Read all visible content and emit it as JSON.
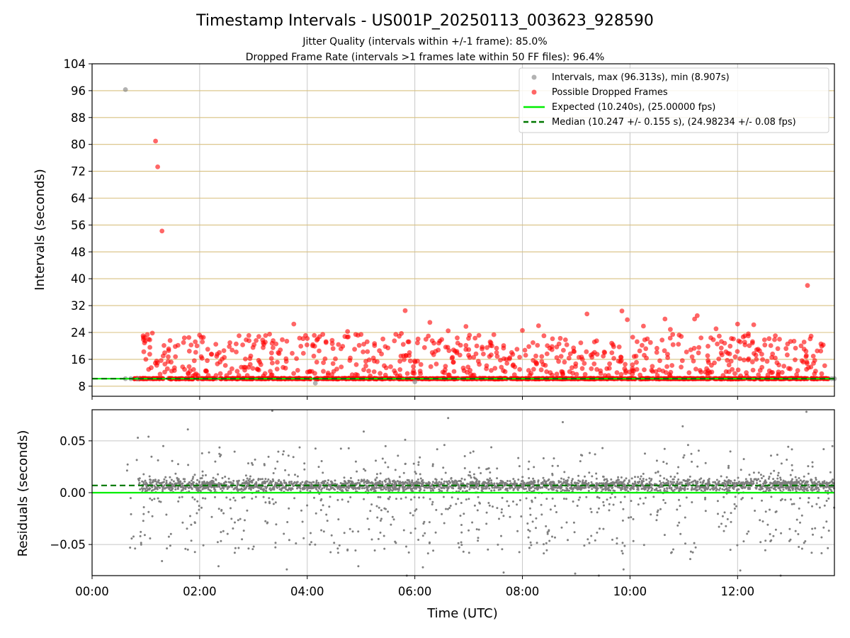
{
  "chart_data": [
    {
      "type": "scatter",
      "title": "Timestamp Intervals - US001P_20250113_003623_928590",
      "subtitle_lines": [
        "Jitter Quality (intervals within +/-1 frame): 85.0%",
        "Dropped Frame Rate (intervals >1 frames late within 50 FF files): 96.4%"
      ],
      "xlabel": "",
      "ylabel": "Intervals (seconds)",
      "x_unit": "hours since 00:00 UTC",
      "xlim": [
        0,
        13.8
      ],
      "ylim": [
        5,
        104
      ],
      "yticks": [
        8,
        16,
        24,
        32,
        40,
        48,
        56,
        64,
        72,
        80,
        88,
        96,
        104
      ],
      "ygrid_color": "#d8c080",
      "series": [
        {
          "name": "Intervals, max (96.313s), min (8.907s)",
          "color": "#7f7f7f",
          "points": [
            [
              0.62,
              96.313
            ],
            [
              0.62,
              10.24
            ],
            [
              0.72,
              10.24
            ],
            [
              0.85,
              10.24
            ],
            [
              4.15,
              8.907
            ],
            [
              6.0,
              9.3
            ],
            [
              13.75,
              10.24
            ],
            [
              13.8,
              10.24
            ]
          ]
        },
        {
          "name": "Possible Dropped Frames",
          "color": "#ff0000",
          "baseline_band": {
            "x_start": 0.78,
            "x_end": 13.7,
            "y": 10.25
          },
          "points": [
            [
              1.18,
              81.0
            ],
            [
              1.22,
              73.3
            ],
            [
              1.3,
              54.2
            ],
            [
              13.3,
              38.0
            ],
            [
              5.82,
              30.5
            ],
            [
              9.2,
              29.5
            ],
            [
              9.85,
              30.4
            ],
            [
              9.95,
              27.8
            ],
            [
              10.65,
              28.0
            ],
            [
              11.25,
              29.0
            ],
            [
              3.75,
              26.5
            ],
            [
              6.28,
              27.0
            ],
            [
              6.95,
              25.8
            ],
            [
              11.2,
              28.0
            ],
            [
              12.0,
              26.5
            ],
            [
              12.3,
              26.3
            ],
            [
              8.3,
              26.0
            ],
            [
              10.25,
              25.9
            ],
            [
              11.6,
              25.1
            ],
            [
              4.75,
              24.3
            ],
            [
              1.12,
              23.8
            ],
            [
              0.98,
              22.5
            ],
            [
              0.95,
              23.0
            ],
            [
              1.05,
              22.0
            ],
            [
              1.45,
              21.6
            ],
            [
              1.7,
              21.0
            ],
            [
              1.8,
              22.5
            ],
            [
              1.95,
              20.0
            ],
            [
              2.05,
              21.2
            ],
            [
              2.15,
              19.0
            ],
            [
              2.3,
              20.5
            ],
            [
              2.45,
              18.6
            ],
            [
              2.55,
              19.8
            ],
            [
              2.68,
              18.2
            ],
            [
              2.8,
              20.3
            ],
            [
              2.95,
              17.0
            ],
            [
              3.05,
              21.6
            ],
            [
              3.18,
              19.5
            ],
            [
              3.3,
              23.5
            ],
            [
              3.42,
              20.6
            ],
            [
              3.5,
              18.8
            ],
            [
              3.62,
              21.4
            ],
            [
              3.72,
              17.8
            ],
            [
              3.88,
              19.9
            ],
            [
              4.0,
              22.2
            ],
            [
              4.1,
              20.0
            ],
            [
              4.22,
              18.5
            ],
            [
              4.35,
              21.0
            ],
            [
              4.48,
              19.2
            ],
            [
              4.58,
              20.4
            ],
            [
              4.7,
              22.8
            ],
            [
              4.88,
              19.0
            ],
            [
              5.0,
              23.4
            ],
            [
              5.12,
              18.3
            ],
            [
              5.25,
              20.7
            ],
            [
              5.38,
              17.6
            ],
            [
              5.5,
              19.4
            ],
            [
              5.62,
              21.5
            ],
            [
              5.75,
              23.7
            ],
            [
              5.9,
              18.0
            ],
            [
              6.05,
              20.9
            ],
            [
              6.18,
              19.5
            ],
            [
              6.35,
              17.4
            ],
            [
              6.5,
              21.9
            ],
            [
              6.62,
              24.5
            ],
            [
              6.72,
              18.8
            ],
            [
              6.85,
              20.2
            ],
            [
              7.0,
              17.2
            ],
            [
              7.12,
              22.3
            ],
            [
              7.25,
              19.1
            ],
            [
              7.4,
              21.2
            ],
            [
              7.52,
              18.0
            ],
            [
              7.65,
              20.1
            ],
            [
              7.82,
              17.5
            ],
            [
              8.0,
              24.6
            ],
            [
              8.12,
              19.8
            ],
            [
              8.25,
              17.0
            ],
            [
              8.4,
              23.0
            ],
            [
              8.55,
              18.9
            ],
            [
              8.68,
              20.6
            ],
            [
              8.8,
              21.8
            ],
            [
              8.95,
              19.4
            ],
            [
              9.05,
              16.6
            ],
            [
              9.38,
              21.5
            ],
            [
              9.52,
              18.2
            ],
            [
              9.66,
              20.8
            ],
            [
              9.8,
              19.7
            ],
            [
              10.05,
              22.6
            ],
            [
              10.18,
              18.5
            ],
            [
              10.38,
              21.0
            ],
            [
              10.5,
              19.3
            ],
            [
              10.75,
              24.9
            ],
            [
              10.9,
              20.5
            ],
            [
              11.05,
              18.2
            ],
            [
              11.32,
              22.4
            ],
            [
              11.45,
              19.9
            ],
            [
              11.7,
              21.3
            ],
            [
              11.82,
              17.8
            ],
            [
              12.05,
              21.2
            ],
            [
              12.2,
              23.6
            ],
            [
              12.38,
              19.0
            ],
            [
              12.5,
              21.8
            ],
            [
              12.65,
              17.6
            ],
            [
              12.78,
              22.0
            ],
            [
              12.9,
              19.2
            ],
            [
              13.05,
              21.4
            ],
            [
              13.18,
              20.0
            ],
            [
              13.35,
              22.1
            ],
            [
              13.48,
              18.5
            ],
            [
              13.55,
              20.6
            ],
            [
              1.0,
              16.0
            ],
            [
              1.1,
              13.5
            ],
            [
              1.2,
              15.5
            ],
            [
              1.35,
              12.2
            ],
            [
              1.55,
              16.8
            ],
            [
              1.72,
              13.0
            ],
            [
              1.9,
              15.6
            ],
            [
              2.12,
              12.6
            ],
            [
              2.38,
              15.2
            ],
            [
              2.6,
              13.2
            ],
            [
              2.85,
              16.1
            ],
            [
              3.1,
              12.8
            ],
            [
              3.35,
              14.9
            ],
            [
              3.55,
              13.6
            ],
            [
              3.8,
              16.2
            ],
            [
              4.05,
              12.4
            ],
            [
              4.3,
              15.0
            ],
            [
              4.55,
              13.1
            ],
            [
              4.8,
              16.4
            ],
            [
              5.05,
              12.9
            ],
            [
              5.3,
              15.3
            ],
            [
              5.55,
              13.8
            ],
            [
              5.8,
              15.9
            ],
            [
              6.1,
              12.5
            ],
            [
              6.4,
              14.6
            ],
            [
              6.55,
              12.0
            ],
            [
              6.7,
              16.6
            ],
            [
              6.9,
              13.4
            ],
            [
              7.18,
              15.4
            ],
            [
              7.42,
              12.7
            ],
            [
              7.7,
              16.0
            ],
            [
              7.95,
              13.0
            ],
            [
              8.2,
              15.7
            ],
            [
              8.45,
              12.3
            ],
            [
              8.72,
              16.9
            ],
            [
              8.92,
              13.5
            ],
            [
              9.15,
              14.8
            ],
            [
              9.45,
              12.6
            ],
            [
              9.7,
              16.3
            ],
            [
              9.9,
              13.2
            ],
            [
              10.12,
              15.1
            ],
            [
              10.42,
              12.4
            ],
            [
              10.7,
              16.5
            ],
            [
              10.95,
              13.7
            ],
            [
              11.18,
              15.5
            ],
            [
              11.4,
              12.2
            ],
            [
              11.65,
              16.1
            ],
            [
              11.9,
              13.0
            ],
            [
              12.12,
              15.8
            ],
            [
              12.42,
              12.7
            ],
            [
              12.7,
              16.4
            ],
            [
              12.95,
              13.3
            ],
            [
              13.22,
              15.2
            ],
            [
              13.45,
              12.5
            ],
            [
              13.62,
              14.1
            ]
          ]
        }
      ],
      "reference_lines": [
        {
          "name": "Expected (10.240s), (25.00000 fps)",
          "y": 10.24,
          "color": "#00ee00",
          "style": "solid"
        },
        {
          "name": "Median (10.247 +/- 0.155 s), (24.98234 +/- 0.08 fps)",
          "y": 10.247,
          "color": "#007700",
          "style": "dashed"
        }
      ],
      "grid": "vertical (gray) + horizontal (tan)",
      "legend_position": "top-right"
    },
    {
      "type": "scatter",
      "xlabel": "Time (UTC)",
      "ylabel": "Residuals (seconds)",
      "x_unit": "hours since 00:00 UTC",
      "xlim": [
        0,
        13.8
      ],
      "ylim": [
        -0.08,
        0.08
      ],
      "xticks": [
        0,
        2,
        4,
        6,
        8,
        10,
        12
      ],
      "xtick_labels": [
        "00:00",
        "02:00",
        "04:00",
        "06:00",
        "08:00",
        "10:00",
        "12:00"
      ],
      "yticks": [
        0.05,
        0.0,
        -0.05
      ],
      "ytick_labels": [
        "0.05",
        "0.00",
        "−0.05"
      ],
      "series": [
        {
          "name": "",
          "color": "#7f7f7f",
          "dense_band": {
            "x_start": 0.85,
            "x_end": 13.8,
            "y_center": 0.007,
            "y_spread": 0.009,
            "count": 2600
          },
          "scatter_cloud": {
            "x_start": 0.65,
            "x_end": 13.8,
            "y_min": -0.078,
            "y_max": 0.075,
            "count": 650
          },
          "points": [
            [
              0.85,
              0.053
            ],
            [
              1.05,
              0.054
            ],
            [
              1.78,
              0.061
            ],
            [
              2.38,
              0.035
            ],
            [
              3.35,
              0.079
            ],
            [
              5.05,
              0.059
            ],
            [
              5.82,
              0.051
            ],
            [
              6.62,
              0.072
            ],
            [
              6.55,
              0.046
            ],
            [
              8.75,
              0.068
            ],
            [
              9.35,
              0.037
            ],
            [
              10.98,
              0.064
            ],
            [
              11.08,
              0.046
            ],
            [
              13.28,
              0.078
            ],
            [
              13.6,
              0.042
            ],
            [
              1.3,
              -0.066
            ],
            [
              1.78,
              -0.055
            ],
            [
              2.35,
              -0.071
            ],
            [
              3.62,
              -0.074
            ],
            [
              4.95,
              -0.071
            ],
            [
              5.85,
              -0.081
            ],
            [
              6.15,
              -0.072
            ],
            [
              7.65,
              -0.077
            ],
            [
              8.98,
              -0.078
            ],
            [
              9.42,
              -0.081
            ],
            [
              9.88,
              -0.074
            ],
            [
              11.12,
              -0.064
            ],
            [
              12.05,
              -0.075
            ],
            [
              12.8,
              -0.08
            ],
            [
              13.2,
              -0.054
            ]
          ]
        }
      ],
      "reference_lines": [
        {
          "name": "",
          "y": 0.0,
          "color": "#00ee00",
          "style": "solid"
        },
        {
          "name": "",
          "y": 0.007,
          "color": "#007700",
          "style": "dashed"
        }
      ],
      "grid": true
    }
  ]
}
